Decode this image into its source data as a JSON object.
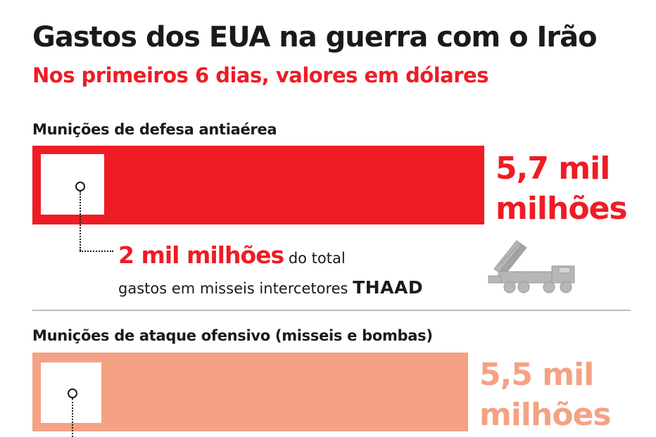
{
  "title": "Gastos dos EUA na guerra com o Irão",
  "subtitle": "Nos primeiros 6 dias, valores em dólares",
  "colors": {
    "defensive": "#ee1c25",
    "offensive": "#f5a183",
    "text": "#1a1a1a",
    "divider": "#bdbdbd"
  },
  "sections": [
    {
      "label": "Munições de defesa antiaérea",
      "value_line1": "5,7 mil",
      "value_line2": "milhões",
      "note": {
        "highlight": "2 mil milhões",
        "rest": " do total",
        "line2": "gastos em misseis intercetores ",
        "line2_strong": "THAAD"
      },
      "icon": "thaad-launcher-truck-icon"
    },
    {
      "label": "Munições de ataque ofensivo (misseis e bombas)",
      "value_line1": "5,5 mil",
      "value_line2": "milhões"
    }
  ],
  "chart_data": {
    "type": "bar",
    "orientation": "horizontal",
    "title": "Gastos dos EUA na guerra com o Irão",
    "subtitle": "Nos primeiros 6 dias, valores em dólares",
    "unit": "mil milhões",
    "categories": [
      "Munições de defesa antiaérea",
      "Munições de ataque ofensivo (misseis e bombas)"
    ],
    "values": [
      5.7,
      5.5
    ],
    "subset": {
      "category": "Munições de defesa antiaérea",
      "label": "THAAD",
      "value": 2
    },
    "xlim": [
      0,
      5.7
    ],
    "grid": false,
    "legend": "none"
  }
}
